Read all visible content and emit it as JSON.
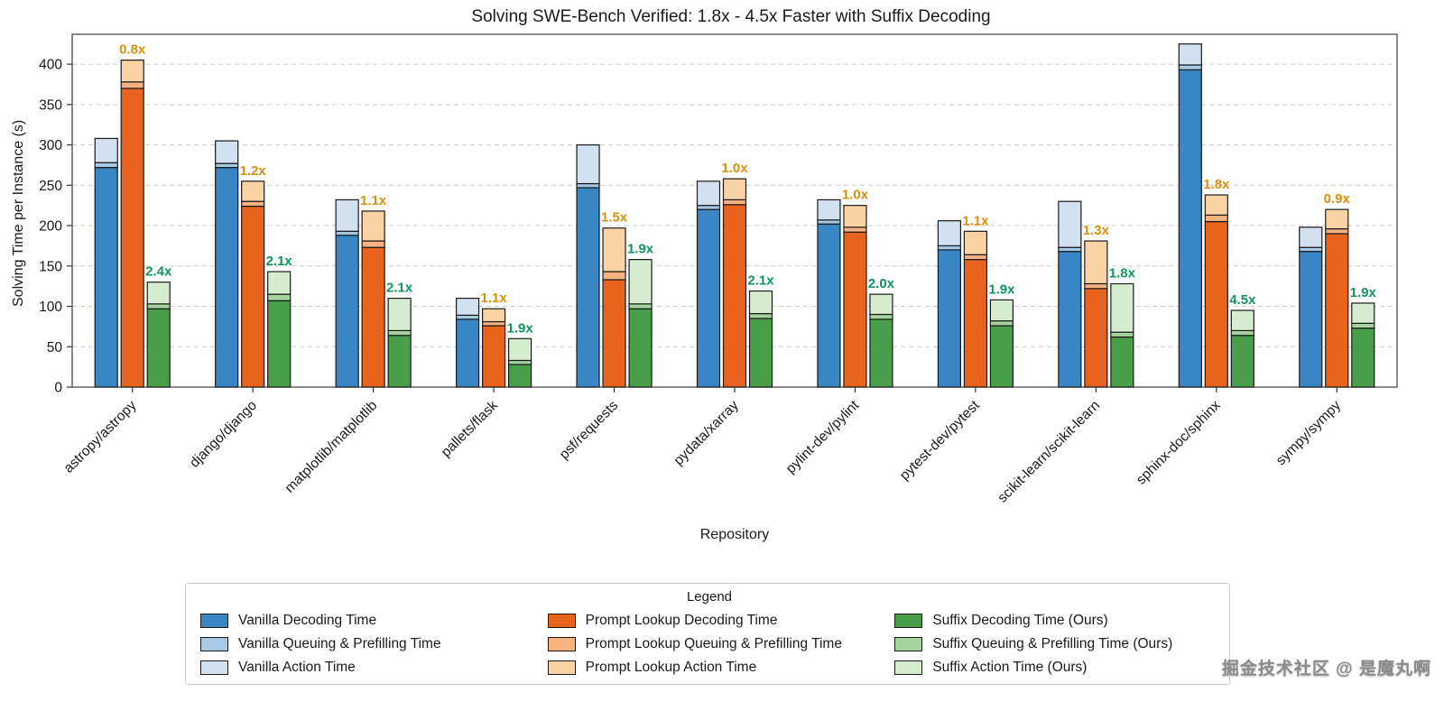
{
  "page": {
    "watermark": "掘金技术社区 @ 是魔丸啊"
  },
  "chart_data": {
    "type": "bar",
    "stacked": true,
    "title": "Solving SWE-Bench Verified: 1.8x - 4.5x Faster with Suffix Decoding",
    "xlabel": "Repository",
    "ylabel": "Solving Time per Instance (s)",
    "ylim": [
      0,
      437
    ],
    "yticks": [
      0,
      50,
      100,
      150,
      200,
      250,
      300,
      350,
      400
    ],
    "grid": true,
    "legend": {
      "title": "Legend",
      "position": "bottom"
    },
    "categories": [
      "astropy/astropy",
      "django/django",
      "matplotlib/matplotlib",
      "pallets/flask",
      "psf/requests",
      "pydata/xarray",
      "pylint-dev/pylint",
      "pytest-dev/pytest",
      "scikit-learn/scikit-learn",
      "sphinx-doc/sphinx",
      "sympy/sympy"
    ],
    "methods": [
      {
        "name": "Vanilla",
        "segments": [
          {
            "label": "Vanilla Decoding Time",
            "color": "#3a85c4",
            "values": [
              272,
              272,
              188,
              84,
              247,
              220,
              202,
              170,
              168,
              393,
              168
            ]
          },
          {
            "label": "Vanilla Queuing & Prefilling Time",
            "color": "#a6c9e6",
            "values": [
              6,
              5,
              5,
              5,
              5,
              5,
              5,
              5,
              5,
              6,
              5
            ]
          },
          {
            "label": "Vanilla Action Time",
            "color": "#d2e0f0",
            "values": [
              30,
              28,
              39,
              21,
              48,
              30,
              25,
              31,
              57,
              26,
              25
            ]
          }
        ]
      },
      {
        "name": "Prompt Lookup",
        "speedup_color": "#d9900f",
        "speedup_labels": [
          "0.8x",
          "1.2x",
          "1.1x",
          "1.1x",
          "1.5x",
          "1.0x",
          "1.0x",
          "1.1x",
          "1.3x",
          "1.8x",
          "0.9x"
        ],
        "segments": [
          {
            "label": "Prompt Lookup Decoding Time",
            "color": "#e8641e",
            "values": [
              370,
              224,
              173,
              76,
              133,
              226,
              192,
              158,
              122,
              205,
              190
            ]
          },
          {
            "label": "Prompt Lookup Queuing & Prefilling Time",
            "color": "#f6b380",
            "values": [
              8,
              6,
              8,
              5,
              10,
              6,
              6,
              6,
              6,
              8,
              6
            ]
          },
          {
            "label": "Prompt Lookup Action Time",
            "color": "#fad3a5",
            "values": [
              27,
              25,
              37,
              16,
              54,
              26,
              27,
              29,
              53,
              25,
              24
            ]
          }
        ]
      },
      {
        "name": "Suffix",
        "speedup_color": "#12945f",
        "speedup_labels": [
          "2.4x",
          "2.1x",
          "2.1x",
          "1.9x",
          "1.9x",
          "2.1x",
          "2.0x",
          "1.9x",
          "1.8x",
          "4.5x",
          "1.9x"
        ],
        "segments": [
          {
            "label": "Suffix Decoding Time (Ours)",
            "color": "#489e49",
            "values": [
              97,
              107,
              64,
              28,
              97,
              85,
              84,
              76,
              62,
              64,
              73
            ]
          },
          {
            "label": "Suffix Queuing & Prefilling Time (Ours)",
            "color": "#a5d39e",
            "values": [
              6,
              8,
              6,
              5,
              6,
              6,
              6,
              6,
              6,
              6,
              6
            ]
          },
          {
            "label": "Suffix Action Time (Ours)",
            "color": "#d6eccf",
            "values": [
              27,
              28,
              40,
              27,
              55,
              28,
              25,
              26,
              60,
              25,
              25
            ]
          }
        ]
      }
    ]
  }
}
